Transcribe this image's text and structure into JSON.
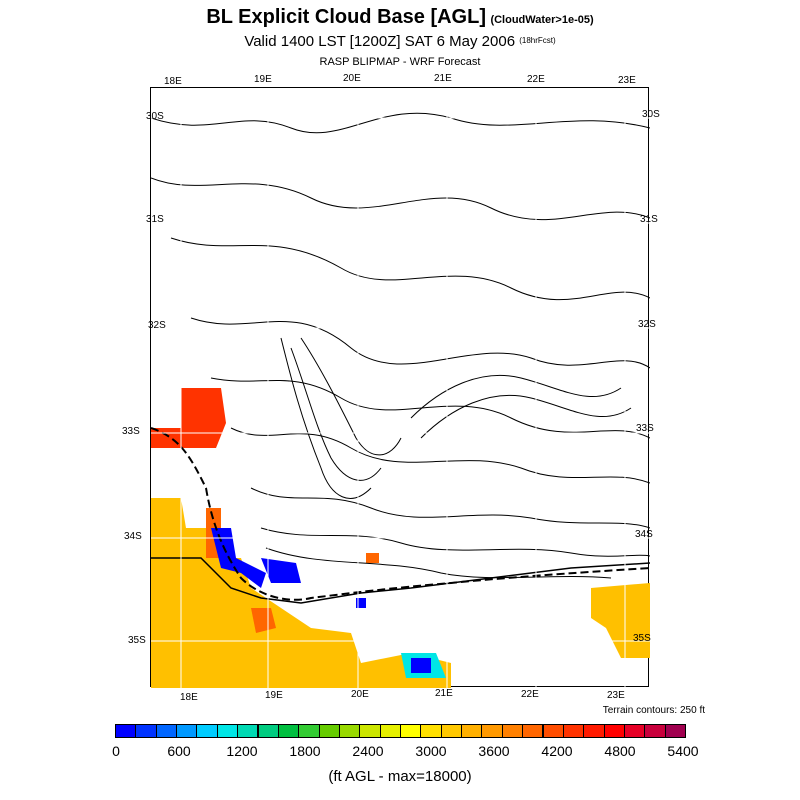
{
  "header": {
    "title": "BL Explicit Cloud Base [AGL]",
    "title_note": "(CloudWater>1e-05)",
    "valid_line": "Valid 1400 LST [1200Z] SAT 6 May 2006",
    "forecast_hour": "(18hrFcst)",
    "source_line": "RASP BLIPMAP - WRF Forecast"
  },
  "map": {
    "lon_labels_top": [
      "18E",
      "19E",
      "20E",
      "21E",
      "22E",
      "23E"
    ],
    "lon_labels_bottom": [
      "18E",
      "19E",
      "20E",
      "21E",
      "22E",
      "23E"
    ],
    "lat_labels_left": [
      "30S",
      "31S",
      "32S",
      "33S",
      "34S",
      "35S"
    ],
    "lat_labels_right": [
      "30S",
      "31S",
      "32S",
      "33S",
      "34S",
      "35S"
    ],
    "terrain_note": "Terrain contours: 250 ft"
  },
  "colorbar": {
    "labels": [
      "0",
      "600",
      "1200",
      "1800",
      "2400",
      "3000",
      "3600",
      "4200",
      "4800",
      "5400"
    ],
    "colors": [
      "#0000ff",
      "#0033ff",
      "#0066ff",
      "#0099ff",
      "#00ccff",
      "#00e6e6",
      "#00d9b3",
      "#00cc80",
      "#00bf40",
      "#33cc33",
      "#66cc00",
      "#99d900",
      "#cce600",
      "#e6f000",
      "#ffff00",
      "#ffe000",
      "#ffc800",
      "#ffb000",
      "#ff9900",
      "#ff8000",
      "#ff6600",
      "#ff4d00",
      "#ff3300",
      "#ff1a00",
      "#ff0000",
      "#e60026",
      "#c8003c",
      "#a0004f"
    ],
    "units": "(ft AGL - max=18000)"
  }
}
